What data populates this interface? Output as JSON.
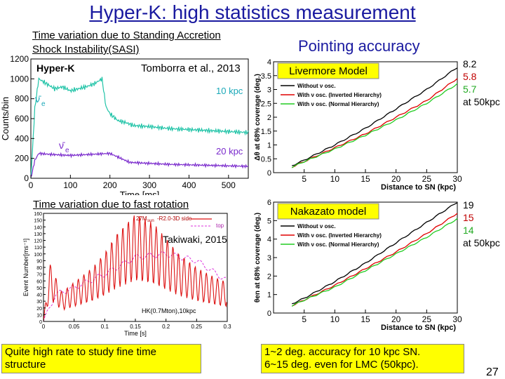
{
  "slide": {
    "title": "Hyper-K: high statistics measurement",
    "page_number": "27"
  },
  "sasi": {
    "caption_line1": "Time variation due to Standing Accretion",
    "caption_line2": "Shock Instability(SASI)",
    "citation": "Tomborra et al., 2013",
    "detector": "Hyper-K",
    "ylabel": "Counts/bin",
    "xlabel": "Time [ms]",
    "xticks": [
      "0",
      "100",
      "200",
      "300",
      "400",
      "500"
    ],
    "yticks": [
      "0",
      "200",
      "400",
      "600",
      "800",
      "1000",
      "1200"
    ],
    "label_10kpc": "10 kpc",
    "label_20kpc": "20 kpc",
    "nu_e_bar": "ν̄",
    "nu_sub": "e"
  },
  "rotation": {
    "caption": "Time variation due to fast rotation",
    "citation": "Takiwaki, 2015",
    "legend_line1": "27M",
    "legend_sub": "sun",
    "legend_rest": "-R2.0-3D  side",
    "legend_line2": "top",
    "ylabel": "Event Number[ms⁻¹]",
    "xlabel": "Time [s]",
    "footnote": "HK(0.7Mton),10kpc",
    "xticks": [
      "0",
      "0.05",
      "0.1",
      "0.15",
      "0.2",
      "0.25",
      "0.3"
    ],
    "yticks": [
      "0",
      "10",
      "20",
      "30",
      "40",
      "50",
      "60",
      "70",
      "80",
      "90",
      "100",
      "110",
      "120",
      "130",
      "140",
      "150",
      "160"
    ]
  },
  "pointing": {
    "heading": "Pointing accuracy",
    "model1": "Livermore Model",
    "model2": "Nakazato model",
    "legend": [
      "Without ν osc.",
      "With ν osc. (Inverted Hierarchy)",
      "With ν osc. (Normal Hierarchy)"
    ],
    "ylabel1": "Δθ at 68% coverage (deg.)",
    "ylabel2": "θen at 68% coverage (deg.)",
    "xlabel": "Distance to SN (kpc)",
    "xticks": [
      "5",
      "10",
      "15",
      "20",
      "25",
      "30"
    ],
    "yticks1": [
      "0",
      "0.5",
      "1",
      "1.5",
      "2",
      "2.5",
      "3",
      "3.5",
      "4"
    ],
    "yticks2": [
      "0",
      "1",
      "2",
      "3",
      "4",
      "5",
      "6"
    ],
    "lmc1": [
      "8.2",
      "5.8",
      "5.7",
      "at 50kpc"
    ],
    "lmc2": [
      "19",
      "15",
      "14",
      "at 50kpc"
    ],
    "colors": {
      "without": "#000000",
      "inverted": "#e00000",
      "normal": "#22cc22"
    }
  },
  "notes": {
    "left": "Quite high rate to study fine time structure",
    "right_line1": "1~2 deg. accuracy for 10 kpc SN.",
    "right_line2": "6~15 deg. even for LMC (50kpc)."
  },
  "chart_data": [
    {
      "type": "line",
      "title": "Hyper-K",
      "xlabel": "Time [ms]",
      "ylabel": "Counts/bin",
      "xlim": [
        0,
        550
      ],
      "ylim": [
        0,
        1200
      ],
      "series": [
        {
          "name": "10 kpc",
          "x": [
            0,
            10,
            20,
            40,
            60,
            80,
            100,
            120,
            140,
            160,
            180,
            190,
            200,
            220,
            240,
            260,
            300,
            350,
            400,
            450,
            500,
            550
          ],
          "y": [
            0,
            700,
            1000,
            950,
            900,
            920,
            880,
            900,
            920,
            950,
            1000,
            720,
            650,
            580,
            560,
            530,
            520,
            500,
            490,
            480,
            470,
            460
          ]
        },
        {
          "name": "20 kpc",
          "x": [
            0,
            10,
            20,
            50,
            100,
            150,
            200,
            250,
            300,
            350,
            400,
            450,
            500,
            550
          ],
          "y": [
            0,
            180,
            250,
            240,
            230,
            240,
            250,
            160,
            150,
            140,
            135,
            130,
            125,
            120
          ]
        }
      ]
    },
    {
      "type": "line",
      "title": "",
      "xlabel": "Time [s]",
      "ylabel": "Event Number[ms⁻¹]",
      "xlim": [
        0,
        0.3
      ],
      "ylim": [
        0,
        160
      ],
      "series": [
        {
          "name": "side",
          "x": [
            0,
            0.01,
            0.03,
            0.05,
            0.08,
            0.1,
            0.12,
            0.15,
            0.18,
            0.2,
            0.22,
            0.25,
            0.28,
            0.3
          ],
          "y": [
            0,
            60,
            30,
            40,
            55,
            70,
            90,
            110,
            100,
            85,
            70,
            55,
            45,
            40
          ]
        },
        {
          "name": "top",
          "x": [
            0,
            0.02,
            0.05,
            0.1,
            0.15,
            0.2,
            0.25,
            0.3
          ],
          "y": [
            0,
            40,
            50,
            70,
            95,
            100,
            90,
            60
          ]
        }
      ]
    },
    {
      "type": "line",
      "title": "Livermore Model",
      "xlabel": "Distance to SN (kpc)",
      "ylabel": "Δθ at 68% coverage (deg.)",
      "xlim": [
        0,
        30
      ],
      "ylim": [
        0,
        4
      ],
      "series": [
        {
          "name": "Without ν osc.",
          "x": [
            3,
            5,
            10,
            15,
            20,
            25,
            30
          ],
          "y": [
            0.25,
            0.45,
            1.0,
            1.6,
            2.3,
            3.0,
            3.8
          ]
        },
        {
          "name": "With ν osc. (Inverted Hierarchy)",
          "x": [
            3,
            5,
            10,
            15,
            20,
            25,
            30
          ],
          "y": [
            0.2,
            0.4,
            0.9,
            1.4,
            2.0,
            2.6,
            3.4
          ]
        },
        {
          "name": "With ν osc. (Normal Hierarchy)",
          "x": [
            3,
            5,
            10,
            15,
            20,
            25,
            30
          ],
          "y": [
            0.2,
            0.4,
            0.85,
            1.35,
            1.9,
            2.5,
            3.2
          ]
        }
      ]
    },
    {
      "type": "line",
      "title": "Nakazato model",
      "xlabel": "Distance to SN (kpc)",
      "ylabel": "θen at 68% coverage (deg.)",
      "xlim": [
        0,
        30
      ],
      "ylim": [
        0,
        6
      ],
      "series": [
        {
          "name": "Without ν osc.",
          "x": [
            3,
            5,
            10,
            15,
            20,
            25,
            30
          ],
          "y": [
            0.5,
            0.8,
            1.7,
            2.7,
            3.8,
            4.9,
            6.0
          ]
        },
        {
          "name": "With ν osc. (Inverted Hierarchy)",
          "x": [
            3,
            5,
            10,
            15,
            20,
            25,
            30
          ],
          "y": [
            0.4,
            0.7,
            1.5,
            2.4,
            3.3,
            4.3,
            5.4
          ]
        },
        {
          "name": "With ν osc. (Normal Hierarchy)",
          "x": [
            3,
            5,
            10,
            15,
            20,
            25,
            30
          ],
          "y": [
            0.4,
            0.7,
            1.4,
            2.3,
            3.2,
            4.1,
            5.1
          ]
        }
      ]
    }
  ]
}
